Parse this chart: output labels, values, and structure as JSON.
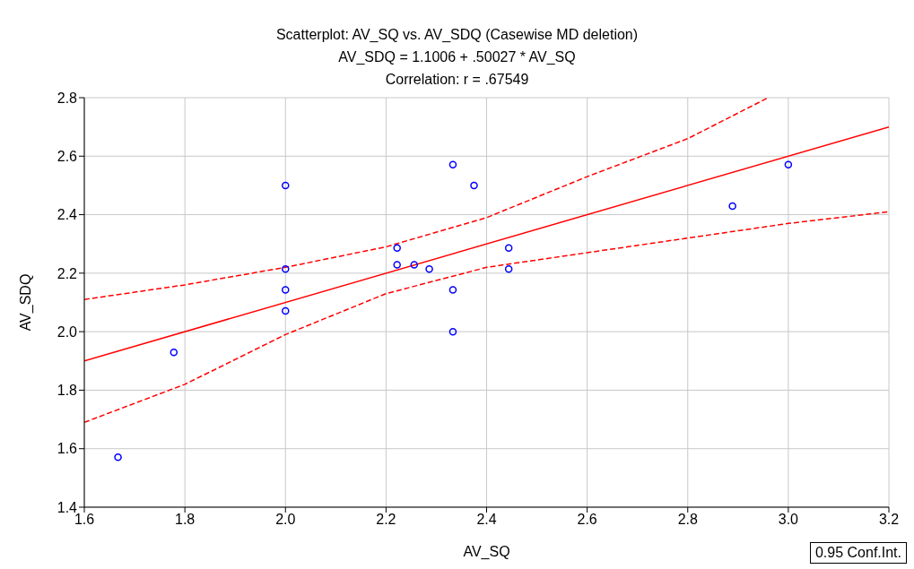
{
  "chart_data": {
    "type": "scatter",
    "title": "Scatterplot: AV_SQ vs. AV_SDQ (Casewise MD deletion)",
    "subtitle": "AV_SDQ = 1.1006 + .50027 * AV_SQ",
    "xlabel": "AV_SQ",
    "ylabel": "AV_SDQ",
    "annotations": [
      "Correlation: r = .67549",
      "0.95 Conf.Int."
    ],
    "xlim": [
      1.6,
      3.2
    ],
    "xticks": [
      1.6,
      1.8,
      {
        "value": 2,
        "label": "2.0"
      },
      2.2,
      2.4,
      2.6,
      2.8,
      {
        "value": 3,
        "label": "3.0"
      },
      3.2
    ],
    "ylim": [
      1.4,
      2.8
    ],
    "yticks": [
      1.4,
      1.6,
      1.8,
      {
        "value": 2,
        "label": "2.0"
      },
      2.2,
      2.4,
      2.6,
      2.8
    ],
    "grid": true,
    "series": [
      {
        "marker": "circle",
        "color": "#0000ff",
        "x": [
          1.667,
          1.778,
          2.0,
          2.0,
          2.0,
          2.0,
          2.222,
          2.222,
          2.256,
          2.286,
          2.333,
          2.333,
          2.333,
          2.375,
          2.444,
          2.444,
          2.889,
          3.0
        ],
        "values": [
          1.571,
          1.929,
          2.5,
          2.214,
          2.143,
          2.071,
          2.286,
          2.229,
          2.229,
          2.214,
          2.571,
          2.143,
          2.0,
          2.5,
          2.286,
          2.214,
          2.429,
          2.571
        ]
      },
      {
        "type": "line",
        "color": "#ff0000",
        "line_style": "solid",
        "x": [
          1.6,
          3.2
        ],
        "values": [
          1.9,
          2.7
        ]
      },
      {
        "type": "line",
        "color": "#ff0000",
        "line_style": "dashed",
        "x": [
          1.6,
          1.8,
          2.0,
          2.2,
          2.4,
          2.6,
          2.8,
          2.96
        ],
        "values": [
          2.11,
          2.16,
          2.22,
          2.29,
          2.39,
          2.53,
          2.66,
          2.8
        ]
      },
      {
        "type": "line",
        "color": "#ff0000",
        "line_style": "dashed",
        "x": [
          1.6,
          1.8,
          2.0,
          2.2,
          2.4,
          2.6,
          2.8,
          3.0,
          3.2
        ],
        "values": [
          1.69,
          1.82,
          1.99,
          2.13,
          2.22,
          2.27,
          2.32,
          2.37,
          2.41
        ]
      }
    ]
  }
}
